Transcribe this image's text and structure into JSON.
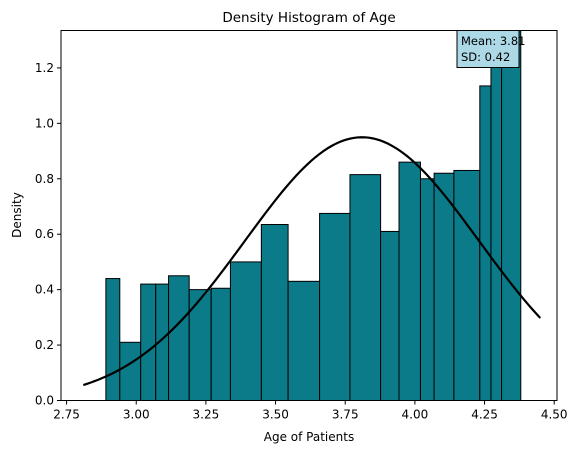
{
  "chart_data": {
    "type": "bar",
    "title": "Density Histogram of Age",
    "xlabel": "Age of Patients",
    "ylabel": "Density",
    "xlim": [
      2.73,
      4.51
    ],
    "ylim": [
      0,
      1.335
    ],
    "xticks": [
      "2.75",
      "3.00",
      "3.25",
      "3.50",
      "3.75",
      "4.00",
      "4.25",
      "4.50"
    ],
    "yticks": [
      "0.0",
      "0.2",
      "0.4",
      "0.6",
      "0.8",
      "1.0",
      "1.2"
    ],
    "grid": false,
    "bar_color": "#0b7b89",
    "bins": [
      {
        "x0": 2.891,
        "x1": 2.941,
        "density": 0.44
      },
      {
        "x0": 2.941,
        "x1": 3.016,
        "density": 0.21
      },
      {
        "x0": 3.016,
        "x1": 3.07,
        "density": 0.42
      },
      {
        "x0": 3.07,
        "x1": 3.116,
        "density": 0.42
      },
      {
        "x0": 3.116,
        "x1": 3.19,
        "density": 0.45
      },
      {
        "x0": 3.19,
        "x1": 3.269,
        "density": 0.4
      },
      {
        "x0": 3.269,
        "x1": 3.338,
        "density": 0.405
      },
      {
        "x0": 3.338,
        "x1": 3.449,
        "density": 0.5
      },
      {
        "x0": 3.449,
        "x1": 3.545,
        "density": 0.635
      },
      {
        "x0": 3.545,
        "x1": 3.658,
        "density": 0.43
      },
      {
        "x0": 3.658,
        "x1": 3.767,
        "density": 0.675
      },
      {
        "x0": 3.767,
        "x1": 3.877,
        "density": 0.815
      },
      {
        "x0": 3.877,
        "x1": 3.943,
        "density": 0.61
      },
      {
        "x0": 3.943,
        "x1": 4.02,
        "density": 0.86
      },
      {
        "x0": 4.02,
        "x1": 4.069,
        "density": 0.8
      },
      {
        "x0": 4.069,
        "x1": 4.14,
        "density": 0.82
      },
      {
        "x0": 4.14,
        "x1": 4.233,
        "density": 0.83
      },
      {
        "x0": 4.233,
        "x1": 4.273,
        "density": 1.135
      },
      {
        "x0": 4.273,
        "x1": 4.311,
        "density": 1.335
      },
      {
        "x0": 4.311,
        "x1": 4.38,
        "density": 1.335
      }
    ],
    "normal_curve": {
      "mean": 3.81,
      "sd": 0.42,
      "x_range": [
        2.81,
        4.45
      ],
      "color": "#000000"
    },
    "annotation": {
      "line1": "Mean: 3.81",
      "line2": "SD: 0.42",
      "background": "#add8e6",
      "placement": "top-right"
    }
  }
}
